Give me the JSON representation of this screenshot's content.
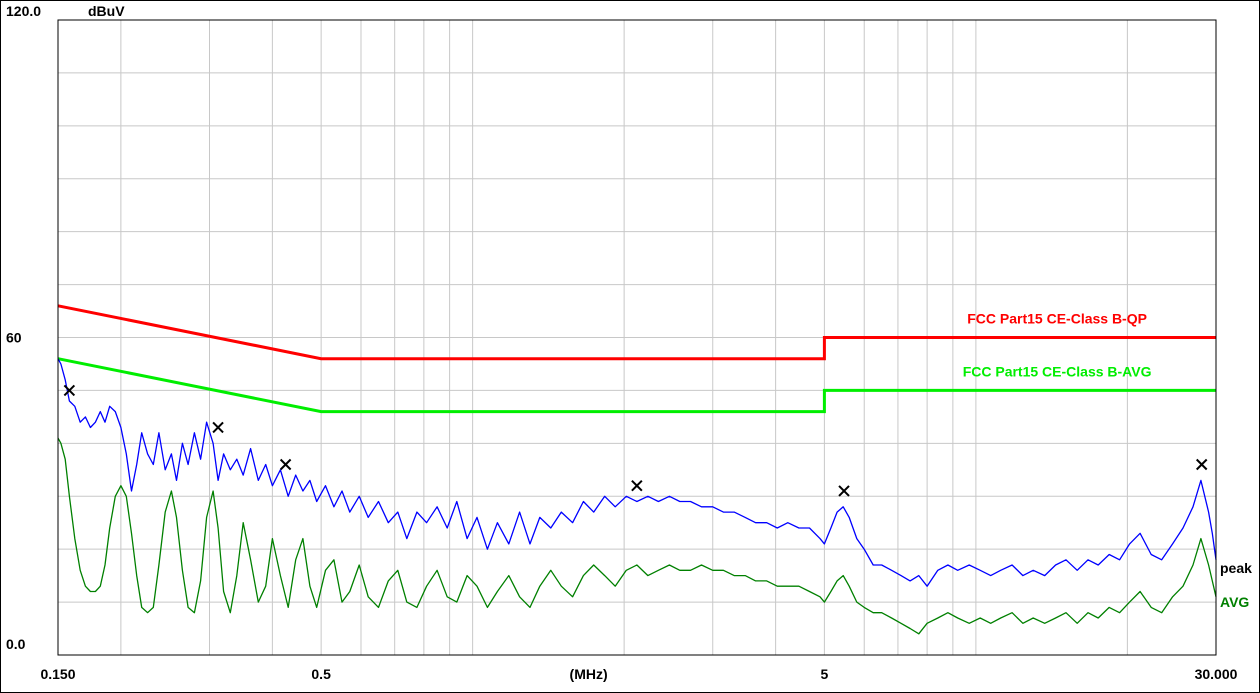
{
  "chart_data": {
    "type": "line",
    "y_unit": "dBuV",
    "x_unit": "(MHz)",
    "x_scale": "log",
    "xlim": [
      0.15,
      30.0
    ],
    "ylim": [
      0.0,
      120.0
    ],
    "y_tick_labels": [
      {
        "value": 120.0,
        "label": "120.0"
      },
      {
        "value": 60,
        "label": "60"
      },
      {
        "value": 0.0,
        "label": "0.0"
      }
    ],
    "x_tick_labels": [
      {
        "value": 0.15,
        "label": "0.150"
      },
      {
        "value": 0.5,
        "label": "0.5"
      },
      {
        "value": 1.7,
        "label": "(MHz)"
      },
      {
        "value": 5,
        "label": "5"
      },
      {
        "value": 30.0,
        "label": "30.000"
      }
    ],
    "grid": true,
    "colors": {
      "qp_limit": "#ff0000",
      "avg_limit": "#00ee00",
      "peak_trace": "#0000ff",
      "avg_trace": "#008000",
      "grid": "#c8c8c8",
      "marker": "#000000"
    },
    "limit_lines": [
      {
        "name": "FCC Part15 CE-Class B-QP",
        "color": "#ff0000",
        "points": [
          [
            0.15,
            66
          ],
          [
            0.5,
            56
          ],
          [
            5,
            56
          ],
          [
            5,
            60
          ],
          [
            30,
            60
          ]
        ]
      },
      {
        "name": "FCC Part15 CE-Class B-AVG",
        "color": "#00ee00",
        "points": [
          [
            0.15,
            56
          ],
          [
            0.5,
            46
          ],
          [
            5,
            46
          ],
          [
            5,
            50
          ],
          [
            30,
            50
          ]
        ]
      }
    ],
    "series": [
      {
        "name": "peak",
        "color": "#0000ff",
        "points": [
          [
            0.15,
            56
          ],
          [
            0.152,
            55
          ],
          [
            0.155,
            52
          ],
          [
            0.158,
            48
          ],
          [
            0.162,
            47
          ],
          [
            0.166,
            44
          ],
          [
            0.17,
            45
          ],
          [
            0.174,
            43
          ],
          [
            0.178,
            44
          ],
          [
            0.182,
            46
          ],
          [
            0.186,
            44
          ],
          [
            0.19,
            47
          ],
          [
            0.195,
            46
          ],
          [
            0.2,
            43
          ],
          [
            0.205,
            38
          ],
          [
            0.21,
            31
          ],
          [
            0.215,
            36
          ],
          [
            0.22,
            42
          ],
          [
            0.226,
            38
          ],
          [
            0.232,
            36
          ],
          [
            0.238,
            42
          ],
          [
            0.245,
            35
          ],
          [
            0.252,
            38
          ],
          [
            0.258,
            33
          ],
          [
            0.265,
            40
          ],
          [
            0.272,
            36
          ],
          [
            0.28,
            42
          ],
          [
            0.288,
            37
          ],
          [
            0.296,
            44
          ],
          [
            0.305,
            40
          ],
          [
            0.312,
            33
          ],
          [
            0.32,
            38
          ],
          [
            0.33,
            35
          ],
          [
            0.34,
            37
          ],
          [
            0.35,
            34
          ],
          [
            0.362,
            39
          ],
          [
            0.375,
            33
          ],
          [
            0.388,
            36
          ],
          [
            0.4,
            32
          ],
          [
            0.415,
            35
          ],
          [
            0.43,
            30
          ],
          [
            0.445,
            34
          ],
          [
            0.46,
            31
          ],
          [
            0.475,
            33
          ],
          [
            0.49,
            29
          ],
          [
            0.51,
            32
          ],
          [
            0.53,
            28
          ],
          [
            0.55,
            31
          ],
          [
            0.57,
            27
          ],
          [
            0.595,
            30
          ],
          [
            0.62,
            26
          ],
          [
            0.65,
            29
          ],
          [
            0.68,
            25
          ],
          [
            0.71,
            27
          ],
          [
            0.74,
            22
          ],
          [
            0.775,
            27
          ],
          [
            0.81,
            25
          ],
          [
            0.85,
            28
          ],
          [
            0.89,
            24
          ],
          [
            0.93,
            29
          ],
          [
            0.975,
            22
          ],
          [
            1.02,
            26
          ],
          [
            1.07,
            20
          ],
          [
            1.12,
            25
          ],
          [
            1.18,
            21
          ],
          [
            1.24,
            27
          ],
          [
            1.3,
            21
          ],
          [
            1.36,
            26
          ],
          [
            1.43,
            24
          ],
          [
            1.5,
            27
          ],
          [
            1.58,
            25
          ],
          [
            1.66,
            29
          ],
          [
            1.74,
            27
          ],
          [
            1.83,
            30
          ],
          [
            1.92,
            28
          ],
          [
            2.02,
            30
          ],
          [
            2.12,
            29
          ],
          [
            2.23,
            30
          ],
          [
            2.34,
            29
          ],
          [
            2.46,
            30
          ],
          [
            2.58,
            29
          ],
          [
            2.71,
            29
          ],
          [
            2.85,
            28
          ],
          [
            3.0,
            28
          ],
          [
            3.15,
            27
          ],
          [
            3.31,
            27
          ],
          [
            3.48,
            26
          ],
          [
            3.65,
            25
          ],
          [
            3.84,
            25
          ],
          [
            4.03,
            24
          ],
          [
            4.23,
            25
          ],
          [
            4.45,
            24
          ],
          [
            4.67,
            24
          ],
          [
            4.9,
            22
          ],
          [
            5.0,
            21
          ],
          [
            5.15,
            24
          ],
          [
            5.3,
            27
          ],
          [
            5.45,
            28
          ],
          [
            5.6,
            26
          ],
          [
            5.8,
            22
          ],
          [
            6.0,
            20
          ],
          [
            6.25,
            17
          ],
          [
            6.5,
            17
          ],
          [
            6.8,
            16
          ],
          [
            7.1,
            15
          ],
          [
            7.4,
            14
          ],
          [
            7.7,
            15
          ],
          [
            8.0,
            13
          ],
          [
            8.4,
            16
          ],
          [
            8.8,
            17
          ],
          [
            9.2,
            16
          ],
          [
            9.7,
            17
          ],
          [
            10.2,
            16
          ],
          [
            10.7,
            15
          ],
          [
            11.2,
            16
          ],
          [
            11.8,
            17
          ],
          [
            12.4,
            15
          ],
          [
            13.0,
            16
          ],
          [
            13.7,
            15
          ],
          [
            14.4,
            17
          ],
          [
            15.1,
            18
          ],
          [
            15.9,
            16
          ],
          [
            16.7,
            18
          ],
          [
            17.5,
            17
          ],
          [
            18.4,
            19
          ],
          [
            19.3,
            18
          ],
          [
            20.2,
            21
          ],
          [
            21.2,
            23
          ],
          [
            22.3,
            19
          ],
          [
            23.4,
            18
          ],
          [
            24.6,
            21
          ],
          [
            25.8,
            24
          ],
          [
            27.0,
            28
          ],
          [
            28.0,
            33
          ],
          [
            29.0,
            27
          ],
          [
            29.5,
            23
          ],
          [
            30.0,
            18
          ]
        ]
      },
      {
        "name": "AVG",
        "color": "#008000",
        "points": [
          [
            0.15,
            41
          ],
          [
            0.152,
            40
          ],
          [
            0.155,
            37
          ],
          [
            0.158,
            30
          ],
          [
            0.162,
            22
          ],
          [
            0.166,
            16
          ],
          [
            0.17,
            13
          ],
          [
            0.174,
            12
          ],
          [
            0.178,
            12
          ],
          [
            0.182,
            13
          ],
          [
            0.186,
            17
          ],
          [
            0.19,
            24
          ],
          [
            0.195,
            30
          ],
          [
            0.2,
            32
          ],
          [
            0.205,
            30
          ],
          [
            0.21,
            23
          ],
          [
            0.215,
            15
          ],
          [
            0.22,
            9
          ],
          [
            0.226,
            8
          ],
          [
            0.232,
            9
          ],
          [
            0.238,
            17
          ],
          [
            0.245,
            27
          ],
          [
            0.252,
            31
          ],
          [
            0.258,
            26
          ],
          [
            0.265,
            16
          ],
          [
            0.272,
            9
          ],
          [
            0.28,
            8
          ],
          [
            0.288,
            14
          ],
          [
            0.296,
            26
          ],
          [
            0.305,
            31
          ],
          [
            0.312,
            24
          ],
          [
            0.32,
            12
          ],
          [
            0.33,
            8
          ],
          [
            0.34,
            15
          ],
          [
            0.35,
            25
          ],
          [
            0.362,
            18
          ],
          [
            0.375,
            10
          ],
          [
            0.388,
            13
          ],
          [
            0.4,
            22
          ],
          [
            0.415,
            15
          ],
          [
            0.43,
            9
          ],
          [
            0.445,
            18
          ],
          [
            0.46,
            22
          ],
          [
            0.475,
            13
          ],
          [
            0.49,
            9
          ],
          [
            0.51,
            16
          ],
          [
            0.53,
            18
          ],
          [
            0.55,
            10
          ],
          [
            0.57,
            12
          ],
          [
            0.595,
            17
          ],
          [
            0.62,
            11
          ],
          [
            0.65,
            9
          ],
          [
            0.68,
            14
          ],
          [
            0.71,
            16
          ],
          [
            0.74,
            10
          ],
          [
            0.775,
            9
          ],
          [
            0.81,
            13
          ],
          [
            0.85,
            16
          ],
          [
            0.89,
            11
          ],
          [
            0.93,
            10
          ],
          [
            0.975,
            15
          ],
          [
            1.02,
            13
          ],
          [
            1.07,
            9
          ],
          [
            1.12,
            12
          ],
          [
            1.18,
            15
          ],
          [
            1.24,
            11
          ],
          [
            1.3,
            9
          ],
          [
            1.36,
            13
          ],
          [
            1.43,
            16
          ],
          [
            1.5,
            13
          ],
          [
            1.58,
            11
          ],
          [
            1.66,
            15
          ],
          [
            1.74,
            17
          ],
          [
            1.83,
            15
          ],
          [
            1.92,
            13
          ],
          [
            2.02,
            16
          ],
          [
            2.12,
            17
          ],
          [
            2.23,
            15
          ],
          [
            2.34,
            16
          ],
          [
            2.46,
            17
          ],
          [
            2.58,
            16
          ],
          [
            2.71,
            16
          ],
          [
            2.85,
            17
          ],
          [
            3.0,
            16
          ],
          [
            3.15,
            16
          ],
          [
            3.31,
            15
          ],
          [
            3.48,
            15
          ],
          [
            3.65,
            14
          ],
          [
            3.84,
            14
          ],
          [
            4.03,
            13
          ],
          [
            4.23,
            13
          ],
          [
            4.45,
            13
          ],
          [
            4.67,
            12
          ],
          [
            4.9,
            11
          ],
          [
            5.0,
            10
          ],
          [
            5.15,
            12
          ],
          [
            5.3,
            14
          ],
          [
            5.45,
            15
          ],
          [
            5.6,
            13
          ],
          [
            5.8,
            10
          ],
          [
            6.0,
            9
          ],
          [
            6.25,
            8
          ],
          [
            6.5,
            8
          ],
          [
            6.8,
            7
          ],
          [
            7.1,
            6
          ],
          [
            7.4,
            5
          ],
          [
            7.7,
            4
          ],
          [
            8.0,
            6
          ],
          [
            8.4,
            7
          ],
          [
            8.8,
            8
          ],
          [
            9.2,
            7
          ],
          [
            9.7,
            6
          ],
          [
            10.2,
            7
          ],
          [
            10.7,
            6
          ],
          [
            11.2,
            7
          ],
          [
            11.8,
            8
          ],
          [
            12.4,
            6
          ],
          [
            13.0,
            7
          ],
          [
            13.7,
            6
          ],
          [
            14.4,
            7
          ],
          [
            15.1,
            8
          ],
          [
            15.9,
            6
          ],
          [
            16.7,
            8
          ],
          [
            17.5,
            7
          ],
          [
            18.4,
            9
          ],
          [
            19.3,
            8
          ],
          [
            20.2,
            10
          ],
          [
            21.2,
            12
          ],
          [
            22.3,
            9
          ],
          [
            23.4,
            8
          ],
          [
            24.6,
            11
          ],
          [
            25.8,
            13
          ],
          [
            27.0,
            17
          ],
          [
            28.0,
            22
          ],
          [
            29.0,
            17
          ],
          [
            29.5,
            14
          ],
          [
            30.0,
            11
          ]
        ]
      }
    ],
    "markers": [
      {
        "x": 0.158,
        "y": 50
      },
      {
        "x": 0.312,
        "y": 43
      },
      {
        "x": 0.425,
        "y": 36
      },
      {
        "x": 2.12,
        "y": 32
      },
      {
        "x": 5.47,
        "y": 31
      },
      {
        "x": 28.1,
        "y": 36
      }
    ]
  }
}
